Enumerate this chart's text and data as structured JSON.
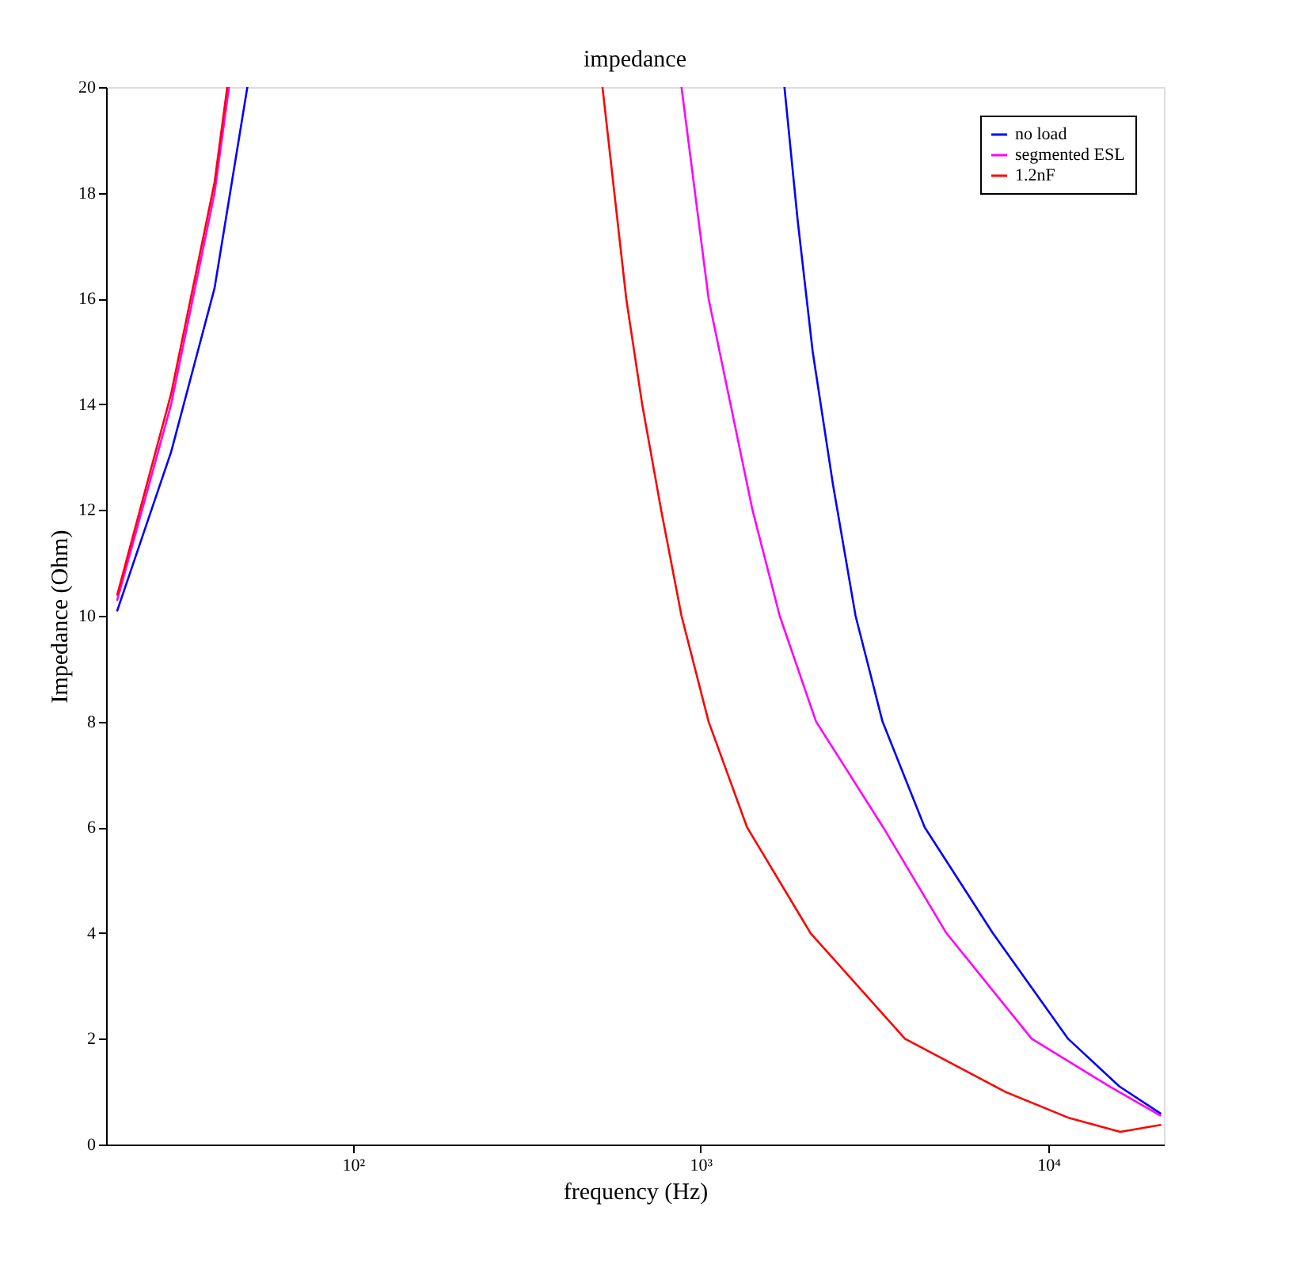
{
  "chart_data": {
    "type": "line",
    "title": "impedance",
    "xlabel": "frequency (Hz)",
    "ylabel": "Impedance (Ohm)",
    "log": "x",
    "xlim": [
      19.5,
      21500
    ],
    "xticks": [
      {
        "value": 100,
        "label": "10²"
      },
      {
        "value": 1000,
        "label": "10³"
      },
      {
        "value": 10000,
        "label": "10⁴"
      }
    ],
    "ylim": [
      0,
      20
    ],
    "yticks": [
      0,
      2,
      4,
      6,
      8,
      10,
      12,
      14,
      16,
      18,
      20
    ],
    "grid": false,
    "legend": "top right",
    "line_style": "solid",
    "marker": "none",
    "series": [
      {
        "name": "no load",
        "color": "#0000ff",
        "x": [
          21,
          30,
          40,
          49.7,
          null,
          1742,
          1900,
          2100,
          2400,
          2790,
          3335,
          4410,
          6920,
          11400,
          16000,
          21000
        ],
        "values": [
          10.1,
          13.1,
          16.2,
          20,
          null,
          20,
          17.5,
          15,
          12.5,
          10,
          8,
          6,
          4,
          2,
          1.1,
          0.59
        ]
      },
      {
        "name": "segmented ESL",
        "color": "#ff00ff",
        "x": [
          21,
          30,
          40,
          44,
          null,
          881,
          1054,
          1410,
          1688,
          2148,
          3350,
          5090,
          8960,
          15000,
          21000
        ],
        "values": [
          10.3,
          14,
          18,
          20,
          null,
          20,
          16,
          12,
          10,
          8,
          6,
          4,
          2,
          1.1,
          0.55
        ]
      },
      {
        "name": "1.2nF",
        "color": "#ff0000",
        "x": [
          21,
          30,
          40,
          43.5,
          null,
          522,
          611,
          679,
          770,
          881,
          1054,
          1360,
          2070,
          3870,
          7500,
          11500,
          16100,
          21000
        ],
        "values": [
          10.4,
          14.2,
          18.2,
          20,
          null,
          20,
          16,
          14,
          12,
          10,
          8,
          6,
          4,
          2,
          1,
          0.5,
          0.24,
          0.37
        ]
      }
    ]
  }
}
